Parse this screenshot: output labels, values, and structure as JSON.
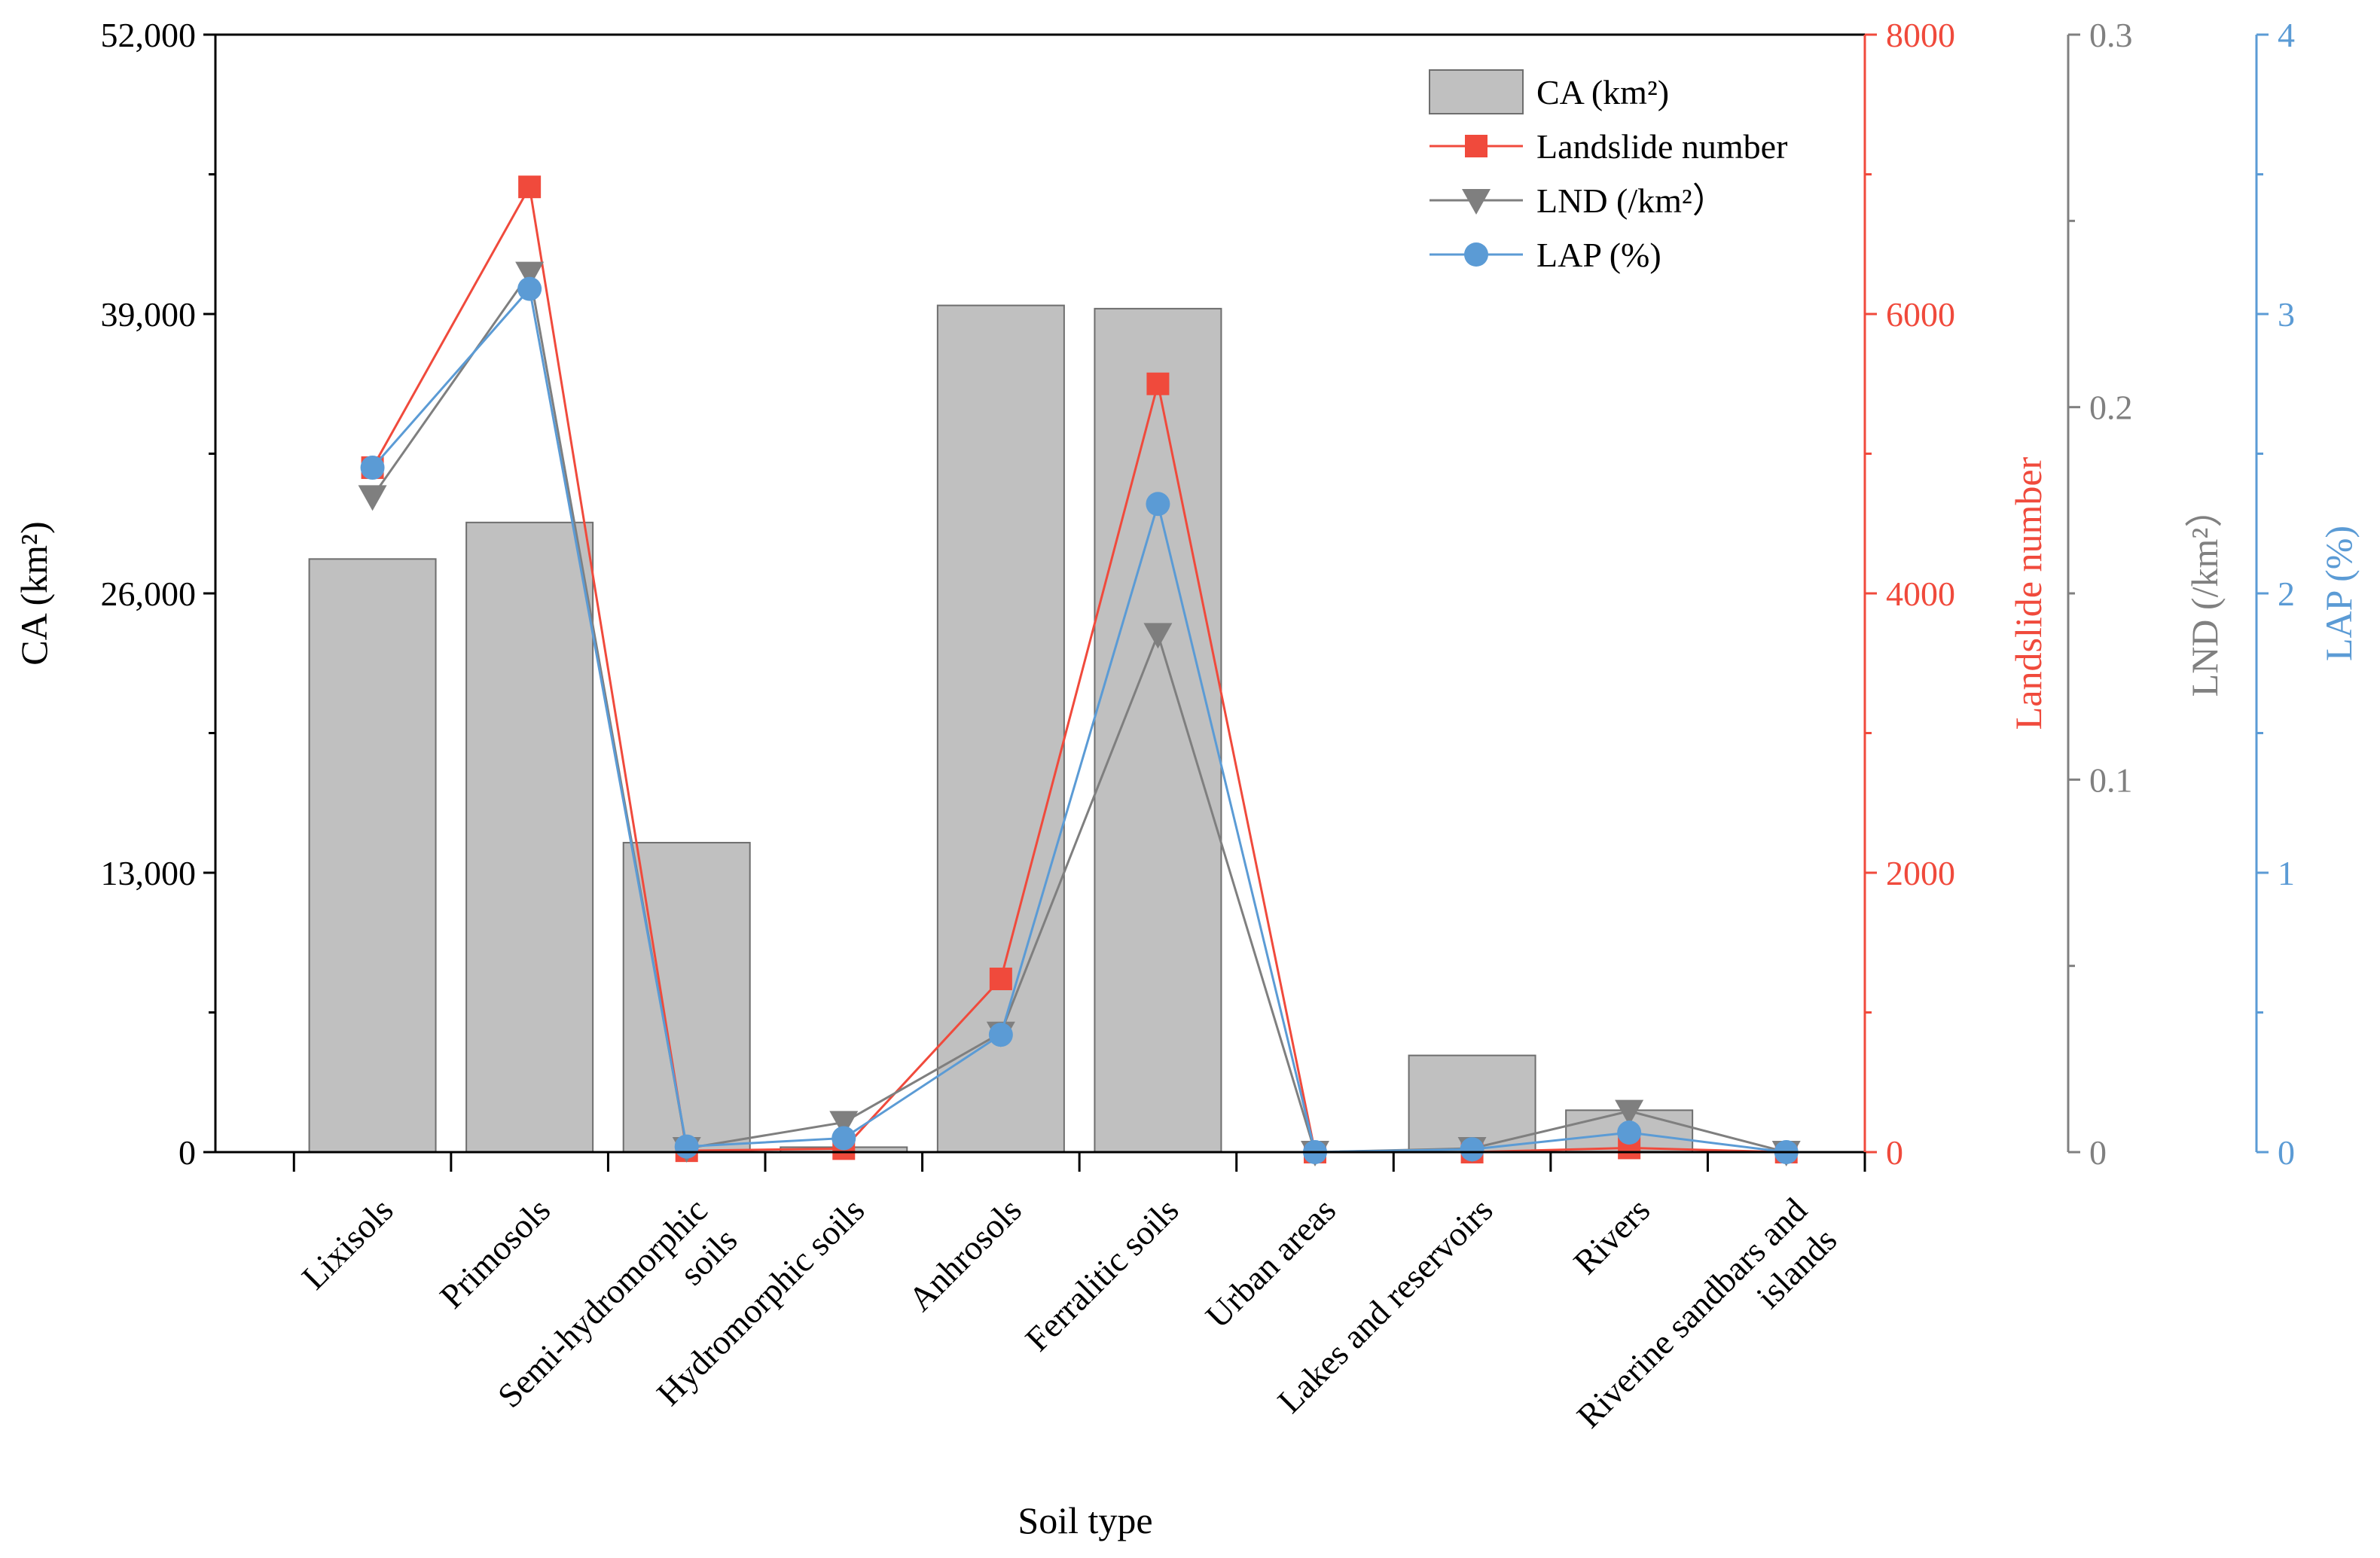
{
  "chart_data": {
    "type": "bar+line",
    "xlabel": "Soil type",
    "categories": [
      [
        "Lixisols"
      ],
      [
        "Primosols"
      ],
      [
        "Semi-hydromorphic",
        "soils"
      ],
      [
        "Hydromorphic soils"
      ],
      [
        "Anhrosols"
      ],
      [
        "Ferralitic soils"
      ],
      [
        "Urban areas"
      ],
      [
        "Lakes and reservoirs"
      ],
      [
        "Rivers"
      ],
      [
        "Riverine sandbars and",
        "islands"
      ]
    ],
    "axes": {
      "ca": {
        "title": "CA (km²)",
        "range": [
          0,
          52000
        ],
        "ticks": [
          0,
          13000,
          26000,
          39000,
          52000
        ],
        "tick_labels": [
          "0",
          "13,000",
          "26,000",
          "39,000",
          "52,000"
        ],
        "color": "#000000"
      },
      "landslide": {
        "title": "Landslide number",
        "range": [
          0,
          8000
        ],
        "ticks": [
          0,
          2000,
          4000,
          6000,
          8000
        ],
        "tick_labels": [
          "0",
          "2000",
          "4000",
          "6000",
          "8000"
        ],
        "color": "#f04a3c"
      },
      "lnd": {
        "title": "LND (/km²）",
        "range": [
          0,
          0.3
        ],
        "ticks": [
          0,
          0.1,
          0.2,
          0.3
        ],
        "tick_labels": [
          "0",
          "0.1",
          "0.2",
          "0.3"
        ],
        "color": "#808080"
      },
      "lap": {
        "title": "LAP (%)",
        "range": [
          0,
          4
        ],
        "ticks": [
          0,
          1,
          2,
          3,
          4
        ],
        "tick_labels": [
          "0",
          "1",
          "2",
          "3",
          "4"
        ],
        "color": "#5b9bd5"
      }
    },
    "series": [
      {
        "name": "CA (km²)",
        "type": "bar",
        "axis": "ca",
        "color": "#c0c0c0",
        "values": [
          27600,
          29300,
          14400,
          230,
          39400,
          39250,
          0,
          4500,
          1950,
          0
        ]
      },
      {
        "name": "Landslide number",
        "type": "line",
        "marker": "square",
        "axis": "landslide",
        "color": "#f04a3c",
        "values": [
          4900,
          6910,
          10,
          25,
          1240,
          5500,
          0,
          0,
          30,
          0
        ]
      },
      {
        "name": "LND (/km²）",
        "type": "line",
        "marker": "triangle-down",
        "axis": "lnd",
        "color": "#7f7f7f",
        "values": [
          0.176,
          0.236,
          0.001,
          0.008,
          0.032,
          0.139,
          0,
          0.001,
          0.011,
          0
        ]
      },
      {
        "name": "LAP (%)",
        "type": "line",
        "marker": "circle",
        "axis": "lap",
        "color": "#5b9bd5",
        "values": [
          2.45,
          3.09,
          0.02,
          0.05,
          0.42,
          2.32,
          0,
          0.01,
          0.07,
          0
        ]
      }
    ],
    "legend_position": "top-right"
  }
}
